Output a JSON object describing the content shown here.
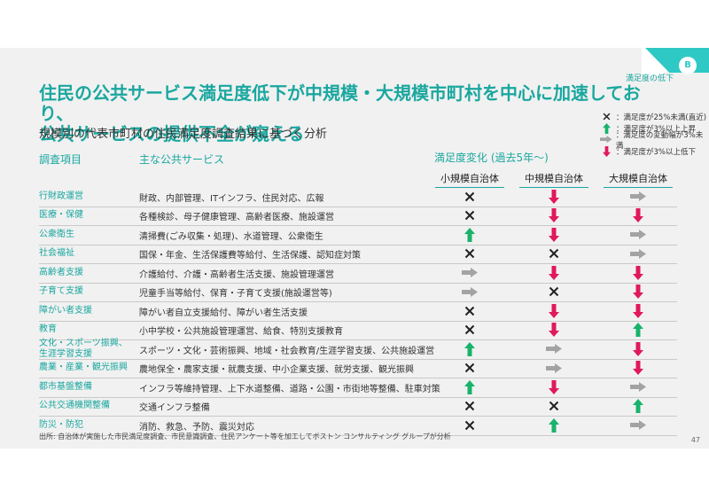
{
  "corner": {
    "label": "満足度の低下",
    "badge": "B"
  },
  "title_line1": "住民の公共サービス満足度低下が中規模・大規模市町村を中心に加速しており、",
  "title_line2": "公共サービスの提供不全が窺える",
  "subtitle": "規模別の代表市町村の住民満足度調査結果に基づく分析",
  "legend": [
    {
      "icon": "cross",
      "text": "：満足度が25%未満(直近)"
    },
    {
      "icon": "up",
      "text": "：満足度が3%以上上昇"
    },
    {
      "icon": "flat",
      "text": "：満足度の変動幅が3%未満"
    },
    {
      "icon": "down",
      "text": "：満足度が3%以上低下"
    }
  ],
  "headers": {
    "item": "調査項目",
    "service": "主な公共サービス",
    "change": "満足度変化 (過去5年～)",
    "cols": [
      "小規模自治体",
      "中規模自治体",
      "大規模自治体"
    ]
  },
  "colors": {
    "accent": "#1aa79f",
    "up": "#19b36b",
    "down": "#e0195a",
    "flat": "#a3a3a3",
    "cross": "#222222"
  },
  "rows": [
    {
      "item": [
        "行財政運営"
      ],
      "service": "財政、内部管理、ITインフラ、住民対応、広報",
      "marks": [
        "cross",
        "down",
        "flat"
      ]
    },
    {
      "item": [
        "医療・保健"
      ],
      "service": "各種検診、母子健康管理、高齢者医療、施設運営",
      "marks": [
        "cross",
        "down",
        "down"
      ]
    },
    {
      "item": [
        "公衆衛生"
      ],
      "service": "清掃費(ごみ収集・処理)、水道管理、公衆衛生",
      "marks": [
        "up",
        "down",
        "flat"
      ]
    },
    {
      "item": [
        "社会福祉"
      ],
      "service": "国保・年金、生活保護費等給付、生活保護、認知症対策",
      "marks": [
        "cross",
        "cross",
        "flat"
      ]
    },
    {
      "item": [
        "高齢者支援"
      ],
      "service": "介護給付、介護・高齢者生活支援、施設管理運営",
      "marks": [
        "flat",
        "down",
        "down"
      ]
    },
    {
      "item": [
        "子育て支援"
      ],
      "service": "児童手当等給付、保育・子育て支援(施設運営等)",
      "marks": [
        "flat",
        "cross",
        "down"
      ]
    },
    {
      "item": [
        "障がい者支援"
      ],
      "service": "障がい者自立支援給付、障がい者生活支援",
      "marks": [
        "cross",
        "down",
        "down"
      ]
    },
    {
      "item": [
        "教育"
      ],
      "service": "小中学校・公共施設管理運営、給食、特別支援教育",
      "marks": [
        "cross",
        "down",
        "up"
      ]
    },
    {
      "item": [
        "文化・スポーツ振興、",
        "生涯学習支援"
      ],
      "service": "スポーツ・文化・芸術振興、地域・社会教育/生涯学習支援、公共施設運営",
      "marks": [
        "up",
        "flat",
        "down"
      ]
    },
    {
      "item": [
        "農業・産業・観光振興"
      ],
      "service": "農地保全・農家支援・就農支援、中小企業支援、就労支援、観光振興",
      "marks": [
        "cross",
        "flat",
        "down"
      ]
    },
    {
      "item": [
        "都市基盤整備"
      ],
      "service": "インフラ等維持管理、上下水道整備、道路・公園・市街地等整備、駐車対策",
      "marks": [
        "up",
        "down",
        "flat"
      ]
    },
    {
      "item": [
        "公共交通機関整備"
      ],
      "service": "交通インフラ整備",
      "marks": [
        "cross",
        "cross",
        "up"
      ]
    },
    {
      "item": [
        "防災・防犯"
      ],
      "service": "消防、救急、予防、震災対応",
      "marks": [
        "cross",
        "up",
        "flat"
      ]
    }
  ],
  "source": "出所: 自治体が実施した市民満足度調査、市民意識調査、住民アンケート等を加工してボストン コンサルティング グループが分析",
  "page_number": "47"
}
